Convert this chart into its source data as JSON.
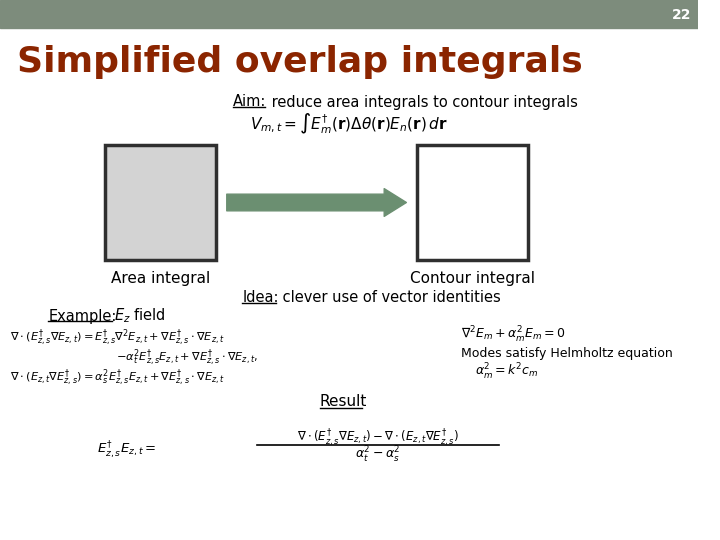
{
  "title": "Simplified overlap integrals",
  "slide_number": "22",
  "header_color": "#7d8c7c",
  "title_color": "#8B2500",
  "background_color": "#ffffff",
  "aim_text": "Aim: reduce area integrals to contour integrals",
  "idea_text": "Idea: clever use of vector identities",
  "example_label": "Example: ",
  "example_field": "$E_z$ field",
  "area_label": "Area integral",
  "contour_label": "Contour integral",
  "result_label": "Result",
  "modes_text": "Modes satisfy Helmholtz equation",
  "arrow_color": "#6b8f71",
  "box_fill_color": "#d3d3d3",
  "box_edge_color": "#2f2f2f",
  "formula_main": "$V_{m,t} = \\int E^{\\dagger}_{m}(\\mathbf{r})\\Delta\\theta(\\mathbf{r})E_{n}(\\mathbf{r})\\, d\\mathbf{r}$",
  "formula_eq1a": "$\\nabla \\cdot (E^{\\dagger}_{z,s}\\nabla E_{z,t}) = E^{\\dagger}_{z,s}\\nabla^2 E_{z,t} + \\nabla E^{\\dagger}_{z,s} \\cdot \\nabla E_{z,t}$",
  "formula_eq1b": "$- \\alpha_t^2 E^{\\dagger}_{z,s} E_{z,t} + \\nabla E^{\\dagger}_{z,s} \\cdot \\nabla E_{z,t},$",
  "formula_eq2": "$\\nabla \\cdot (E_{z,t}\\nabla E^{\\dagger}_{z,s}) = \\alpha_s^2 E^{\\dagger}_{z,s} E_{z,t} + \\nabla E^{\\dagger}_{z,s} \\cdot \\nabla E_{z,t}$",
  "formula_helm1": "$\\nabla^2 E_m + \\alpha_m^2 E_m = 0$",
  "formula_helm2": "$\\alpha_m^2 = k^2 c_m$",
  "formula_result_num": "$\\nabla \\cdot (E^{\\dagger}_{z,s}\\nabla E_{z,t}) - \\nabla \\cdot (E_{z,t}\\nabla E^{\\dagger}_{z,s})$",
  "formula_result_lhs": "$E^{\\dagger}_{z,s} E_{z,t} = $",
  "formula_result_den": "$\\alpha_t^2 - \\alpha_s^2$"
}
